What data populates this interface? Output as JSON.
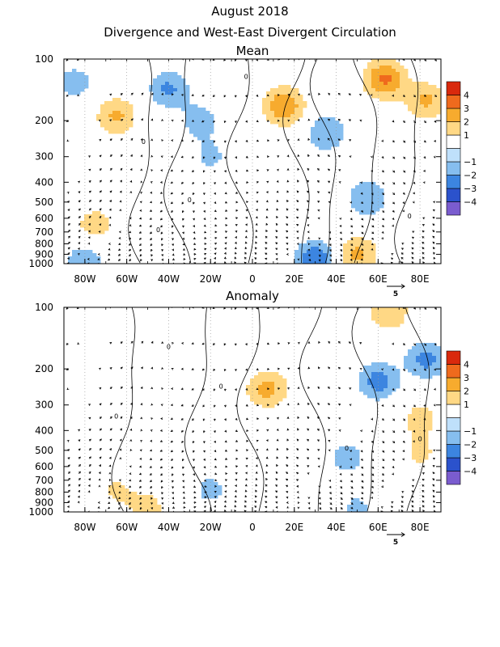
{
  "figure": {
    "title_line1": "August 2018",
    "title_line2": "Divergence and West-East Divergent Circulation"
  },
  "colorbar": {
    "colors": [
      "#7a5ccf",
      "#2b52cc",
      "#3c85e0",
      "#86beef",
      "#bfe0fb",
      "#ffffff",
      "#ffd885",
      "#f7ab2e",
      "#ef6a1d",
      "#d9290d"
    ],
    "labels": [
      "-4",
      "-3",
      "-2",
      "-1",
      "1",
      "2",
      "3",
      "4"
    ]
  },
  "chart_data": [
    {
      "type": "heatmap",
      "title": "Mean",
      "xlabel": "",
      "ylabel": "",
      "x_ticks": [
        "80W",
        "60W",
        "40W",
        "20W",
        "0",
        "20E",
        "40E",
        "60E",
        "80E"
      ],
      "x_tick_values": [
        -80,
        -60,
        -40,
        -20,
        0,
        20,
        40,
        60,
        80
      ],
      "xlim": [
        -90,
        90
      ],
      "y_ticks": [
        "100",
        "200",
        "300",
        "400",
        "500",
        "600",
        "700",
        "800",
        "900",
        "1000"
      ],
      "y_tick_values": [
        100,
        200,
        300,
        400,
        500,
        600,
        700,
        800,
        900,
        1000
      ],
      "ylim": [
        1000,
        100
      ],
      "y_scale": "log",
      "vector_reference": {
        "label": "5",
        "value": 5
      },
      "zero_contour_label": "0",
      "blobs": [
        {
          "lon": -85,
          "p": 130,
          "value": -1.5
        },
        {
          "lon": -65,
          "p": 190,
          "value": 2.2
        },
        {
          "lon": -40,
          "p": 140,
          "value": -2.2
        },
        {
          "lon": -25,
          "p": 200,
          "value": -1.5
        },
        {
          "lon": 15,
          "p": 170,
          "value": 3.0
        },
        {
          "lon": 35,
          "p": 230,
          "value": -2.0
        },
        {
          "lon": 55,
          "p": 480,
          "value": -2.0
        },
        {
          "lon": 63,
          "p": 125,
          "value": 3.2
        },
        {
          "lon": 83,
          "p": 160,
          "value": 2.2
        },
        {
          "lon": 50,
          "p": 900,
          "value": 2.3
        },
        {
          "lon": 30,
          "p": 960,
          "value": -3.0
        },
        {
          "lon": -80,
          "p": 960,
          "value": -1.8
        },
        {
          "lon": -75,
          "p": 650,
          "value": 1.6
        },
        {
          "lon": -20,
          "p": 300,
          "value": -1.2
        }
      ]
    },
    {
      "type": "heatmap",
      "title": "Anomaly",
      "xlabel": "",
      "ylabel": "",
      "x_ticks": [
        "80W",
        "60W",
        "40W",
        "20W",
        "0",
        "20E",
        "40E",
        "60E",
        "80E"
      ],
      "x_tick_values": [
        -80,
        -60,
        -40,
        -20,
        0,
        20,
        40,
        60,
        80
      ],
      "xlim": [
        -90,
        90
      ],
      "y_ticks": [
        "100",
        "200",
        "300",
        "400",
        "500",
        "600",
        "700",
        "800",
        "900",
        "1000"
      ],
      "y_tick_values": [
        100,
        200,
        300,
        400,
        500,
        600,
        700,
        800,
        900,
        1000
      ],
      "ylim": [
        1000,
        100
      ],
      "y_scale": "log",
      "vector_reference": {
        "label": "5",
        "value": 5
      },
      "zero_contour_label": "0",
      "blobs": [
        {
          "lon": 7,
          "p": 250,
          "value": 2.4
        },
        {
          "lon": 60,
          "p": 230,
          "value": -2.5
        },
        {
          "lon": 83,
          "p": 180,
          "value": -2.4
        },
        {
          "lon": 65,
          "p": 105,
          "value": 2.0
        },
        {
          "lon": 80,
          "p": 350,
          "value": 1.4
        },
        {
          "lon": 45,
          "p": 540,
          "value": -1.5
        },
        {
          "lon": -20,
          "p": 780,
          "value": -1.3
        },
        {
          "lon": 50,
          "p": 950,
          "value": -1.2
        },
        {
          "lon": -50,
          "p": 960,
          "value": 1.4
        },
        {
          "lon": -65,
          "p": 780,
          "value": 1.1
        },
        {
          "lon": 80,
          "p": 520,
          "value": 1.2
        },
        {
          "lon": -85,
          "p": 110,
          "value": -1.0
        },
        {
          "lon": 25,
          "p": 700,
          "value": 1.0
        }
      ]
    }
  ]
}
